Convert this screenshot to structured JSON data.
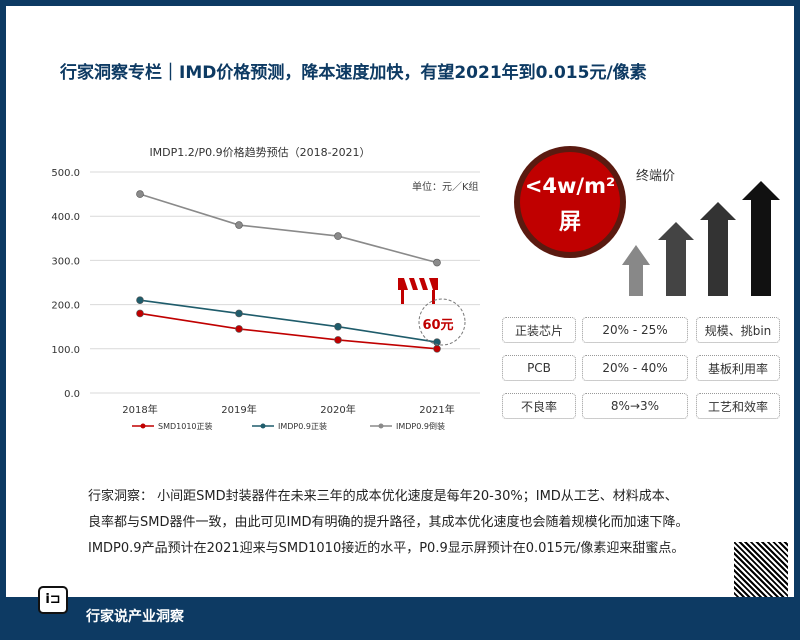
{
  "title": "行家洞察专栏｜IMD价格预测，降本速度加快，有望2021年到0.015元/像素",
  "chart_data": {
    "type": "line",
    "title": "IMDP1.2/P0.9价格趋势预估（2018-2021）",
    "unit_label": "单位：元／K组",
    "categories": [
      "2018年",
      "2019年",
      "2020年",
      "2021年"
    ],
    "ylim": [
      0,
      500
    ],
    "yticks": [
      "0.0",
      "100.0",
      "200.0",
      "300.0",
      "400.0",
      "500.0"
    ],
    "grid": true,
    "legend_position": "bottom",
    "series": [
      {
        "name": "SMD1010正装",
        "values": [
          180,
          145,
          120,
          100
        ],
        "color": "#c00000"
      },
      {
        "name": "IMDP0.9正装",
        "values": [
          210,
          180,
          150,
          115
        ],
        "color": "#1f5c6b"
      },
      {
        "name": "IMDP0.9倒装",
        "values": [
          450,
          380,
          355,
          295
        ],
        "color": "#8a8a8a"
      }
    ],
    "annotation": "60元"
  },
  "badge": {
    "line1": "<4w/m²",
    "line2": "屏"
  },
  "end_price_label": "终端价",
  "table": [
    [
      "正装芯片",
      "20% - 25%",
      "规模、挑bin"
    ],
    [
      "PCB",
      "20% - 40%",
      "基板利用率"
    ],
    [
      "不良率",
      "8%→3%",
      "工艺和效率"
    ]
  ],
  "insight": [
    "行家洞察：  小间距SMD封装器件在未来三年的成本优化速度是每年20-30%；IMD从工艺、材料成本、",
    "良率都与SMD器件一致，由此可见IMD有明确的提升路径，其成本优化速度也会随着规模化而加速下降。",
    "IMDP0.9产品预计在2021迎来与SMD1010接近的水平，P0.9显示屏预计在0.015元/像素迎来甜蜜点。"
  ],
  "footer": "行家说产业洞察",
  "logo_text": "行家说"
}
